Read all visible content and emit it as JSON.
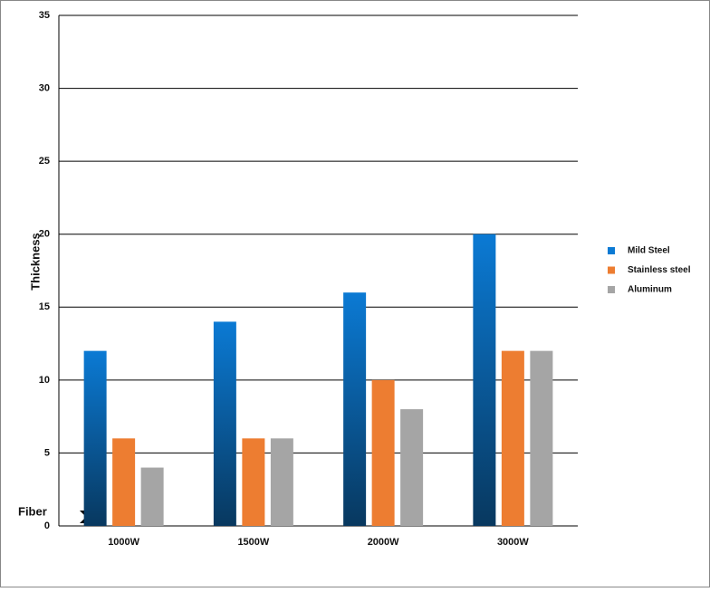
{
  "chart_data": {
    "type": "bar",
    "y_label": "Thickness",
    "annotation": "Fiber",
    "categories": [
      "1000W",
      "1500W",
      "2000W",
      "3000W"
    ],
    "series": [
      {
        "name": "Mild Steel",
        "color": "#0b7ad4",
        "values": [
          12,
          14,
          16,
          20
        ]
      },
      {
        "name": "Stainless steel",
        "color": "#ed7d31",
        "values": [
          6,
          6,
          10,
          12
        ]
      },
      {
        "name": "Aluminum",
        "color": "#a5a5a5",
        "values": [
          4,
          6,
          8,
          12
        ]
      }
    ],
    "ylim": [
      0,
      35
    ],
    "yticks": [
      0,
      5,
      10,
      15,
      20,
      25,
      30,
      35
    ],
    "grid": true
  }
}
